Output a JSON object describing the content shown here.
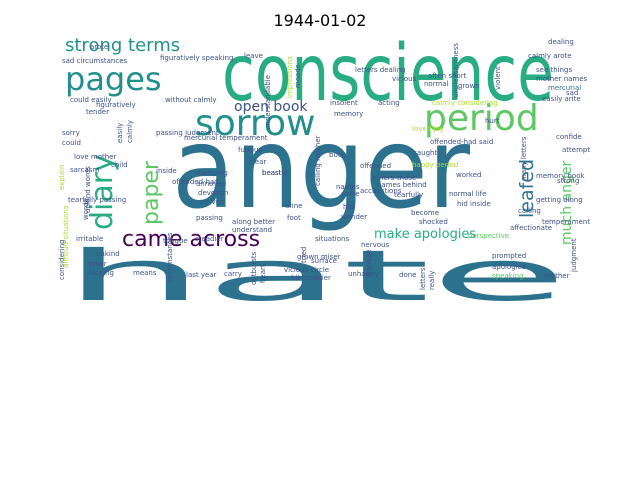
{
  "title": "1944-01-02",
  "palette": {
    "purple": "#440154",
    "indigo": "#3b528b",
    "blue": "#2c728e",
    "teal": "#21908d",
    "green": "#27ad81",
    "lime": "#5dc863",
    "yellowgreen": "#aadc32",
    "yellow": "#fde725",
    "slate": "#3e4a89",
    "violet": "#482878"
  },
  "words": [
    {
      "text": "hate",
      "color": "#2c728e"
    },
    {
      "text": "anger",
      "color": "#2c728e"
    },
    {
      "text": "conscience",
      "color": "#27ad81"
    },
    {
      "text": "sorrow",
      "color": "#21908d"
    },
    {
      "text": "period",
      "color": "#5dc863"
    },
    {
      "text": "pages",
      "color": "#21908d"
    },
    {
      "text": "diary",
      "color": "#27ad81"
    },
    {
      "text": "paper",
      "color": "#5dc863"
    },
    {
      "text": "came across",
      "color": "#440154"
    },
    {
      "text": "strong terms",
      "color": "#21908d"
    },
    {
      "text": "open book",
      "color": "#3b528b"
    },
    {
      "text": "leafed",
      "color": "#2c728e"
    },
    {
      "text": "much anger",
      "color": "#5dc863"
    },
    {
      "text": "make apologies",
      "color": "#27ad81"
    },
    {
      "text": "letters dealing",
      "color": "#3b528b"
    },
    {
      "text": "dealing",
      "color": "#3b528b"
    },
    {
      "text": "calmly arote",
      "color": "#3b528b"
    },
    {
      "text": "see things",
      "color": "#3b528b"
    },
    {
      "text": "mother names",
      "color": "#3b528b"
    },
    {
      "text": "mercurial",
      "color": "#2c728e"
    },
    {
      "text": "easily arite",
      "color": "#3b528b"
    },
    {
      "text": "sad",
      "color": "#3b528b"
    },
    {
      "text": "often short",
      "color": "#3b528b"
    },
    {
      "text": "normal",
      "color": "#3b528b"
    },
    {
      "text": "vicious",
      "color": "#3b528b"
    },
    {
      "text": "acting",
      "color": "#3b528b"
    },
    {
      "text": "insolent",
      "color": "#3b528b"
    },
    {
      "text": "memory",
      "color": "#3b528b"
    },
    {
      "text": "calmly considering",
      "color": "#aadc32"
    },
    {
      "text": "loved joy",
      "color": "#aadc32"
    },
    {
      "text": "offended-had said",
      "color": "#3b528b"
    },
    {
      "text": "hurt",
      "color": "#3b528b"
    },
    {
      "text": "confide",
      "color": "#3b528b"
    },
    {
      "text": "attempt",
      "color": "#3b528b"
    },
    {
      "text": "memory book",
      "color": "#3b528b"
    },
    {
      "text": "strong",
      "color": "#3b528b"
    },
    {
      "text": "many letters",
      "color": "#3b528b"
    },
    {
      "text": "getting along",
      "color": "#3b528b"
    },
    {
      "text": "temperament",
      "color": "#3b528b"
    },
    {
      "text": "calling",
      "color": "#3b528b"
    },
    {
      "text": "affectionate",
      "color": "#3b528b"
    },
    {
      "text": "perspective",
      "color": "#5dc863"
    },
    {
      "text": "prompted",
      "color": "#3b528b"
    },
    {
      "text": "apologies",
      "color": "#3b528b"
    },
    {
      "text": "speaking",
      "color": "#5dc863"
    },
    {
      "text": "mother",
      "color": "#3b528b"
    },
    {
      "text": "judgment",
      "color": "#3b528b"
    },
    {
      "text": "figuratively speaking",
      "color": "#3b528b"
    },
    {
      "text": "without calmly",
      "color": "#3b528b"
    },
    {
      "text": "could easily",
      "color": "#3b528b"
    },
    {
      "text": "sad circumstances",
      "color": "#3b528b"
    },
    {
      "text": "figuratively",
      "color": "#3b528b"
    },
    {
      "text": "leave",
      "color": "#3b528b"
    },
    {
      "text": "arote",
      "color": "#3b528b"
    },
    {
      "text": "passing judgment",
      "color": "#3b528b"
    },
    {
      "text": "love mother",
      "color": "#3b528b"
    },
    {
      "text": "sarcasm",
      "color": "#3b528b"
    },
    {
      "text": "explain",
      "color": "#aadc32"
    },
    {
      "text": "sorry",
      "color": "#3b528b"
    },
    {
      "text": "could",
      "color": "#3b528b"
    },
    {
      "text": "child",
      "color": "#3b528b"
    },
    {
      "text": "tender",
      "color": "#3b528b"
    },
    {
      "text": "irritable",
      "color": "#3b528b"
    },
    {
      "text": "considering",
      "color": "#3b528b"
    },
    {
      "text": "unkind",
      "color": "#3b528b"
    },
    {
      "text": "miser",
      "color": "#3b528b"
    },
    {
      "text": "locking",
      "color": "#3b528b"
    },
    {
      "text": "means",
      "color": "#3b528b"
    },
    {
      "text": "circumstances",
      "color": "#3b528b"
    },
    {
      "text": "last year",
      "color": "#3b528b"
    },
    {
      "text": "carry",
      "color": "#3b528b"
    },
    {
      "text": "outbursts",
      "color": "#3b528b"
    },
    {
      "text": "vicious circle",
      "color": "#3b528b"
    },
    {
      "text": "bit steadier",
      "color": "#3b528b"
    },
    {
      "text": "grown miser",
      "color": "#3b528b"
    },
    {
      "text": "unhappy",
      "color": "#3b528b"
    },
    {
      "text": "manage",
      "color": "#3b528b"
    },
    {
      "text": "done",
      "color": "#3b528b"
    },
    {
      "text": "letters",
      "color": "#3b528b"
    },
    {
      "text": "really",
      "color": "#3b528b"
    },
    {
      "text": "tongue",
      "color": "#3b528b"
    },
    {
      "text": "steadier",
      "color": "#3b528b"
    },
    {
      "text": "nerves",
      "color": "#3b528b"
    },
    {
      "text": "devotion",
      "color": "#3b528b"
    },
    {
      "text": "annoyed",
      "color": "#3b528b"
    },
    {
      "text": "stamping",
      "color": "#3b528b"
    },
    {
      "text": "mercurial temperament",
      "color": "#3b528b"
    },
    {
      "text": "offended-had",
      "color": "#3b528b"
    },
    {
      "text": "inside",
      "color": "#3b528b"
    },
    {
      "text": "passing",
      "color": "#3b528b"
    },
    {
      "text": "furious",
      "color": "#3b528b"
    },
    {
      "text": "clear",
      "color": "#3b528b"
    },
    {
      "text": "beastly",
      "color": "#3b528b"
    },
    {
      "text": "anne",
      "color": "#3b528b"
    },
    {
      "text": "foot",
      "color": "#3b528b"
    },
    {
      "text": "hid",
      "color": "#3b528b"
    },
    {
      "text": "wonder",
      "color": "#3b528b"
    },
    {
      "text": "situations",
      "color": "#3b528b"
    },
    {
      "text": "surface",
      "color": "#3b528b"
    },
    {
      "text": "circle",
      "color": "#3b528b"
    },
    {
      "text": "calling mother",
      "color": "#3b528b"
    },
    {
      "text": "names",
      "color": "#3b528b"
    },
    {
      "text": "book",
      "color": "#3b528b"
    },
    {
      "text": "offended",
      "color": "#3b528b"
    },
    {
      "text": "caught",
      "color": "#3b528b"
    },
    {
      "text": "others-those",
      "color": "#3b528b"
    },
    {
      "text": "names behind",
      "color": "#3b528b"
    },
    {
      "text": "tearfully",
      "color": "#3b528b"
    },
    {
      "text": "accusations",
      "color": "#3b528b"
    },
    {
      "text": "shocked",
      "color": "#3b528b"
    },
    {
      "text": "become",
      "color": "#3b528b"
    },
    {
      "text": "normal life",
      "color": "#3b528b"
    },
    {
      "text": "hid inside",
      "color": "#3b528b"
    },
    {
      "text": "worked",
      "color": "#3b528b"
    },
    {
      "text": "happy period",
      "color": "#aadc32"
    },
    {
      "text": "nervous",
      "color": "#3b528b"
    },
    {
      "text": "along better",
      "color": "#3b528b"
    },
    {
      "text": "understand",
      "color": "#3b528b"
    },
    {
      "text": "difficult situations",
      "color": "#aadc32"
    },
    {
      "text": "tearfully passing",
      "color": "#3b528b"
    },
    {
      "text": "easily",
      "color": "#3b528b"
    },
    {
      "text": "calmly",
      "color": "#3b528b"
    },
    {
      "text": "unkind words",
      "color": "#3b528b"
    },
    {
      "text": "violent",
      "color": "#3b528b"
    },
    {
      "text": "unpleasantness",
      "color": "#3b528b"
    },
    {
      "text": "understandable",
      "color": "#3b528b"
    },
    {
      "text": "impressions",
      "color": "#aadc32"
    },
    {
      "text": "moods",
      "color": "#3b528b"
    },
    {
      "text": "tried",
      "color": "#3b528b"
    },
    {
      "text": "heart",
      "color": "#3b528b"
    },
    {
      "text": "grown",
      "color": "#3b528b"
    },
    {
      "text": "beastly",
      "color": "#3b528b"
    },
    {
      "text": "words",
      "color": "#3b528b"
    }
  ]
}
